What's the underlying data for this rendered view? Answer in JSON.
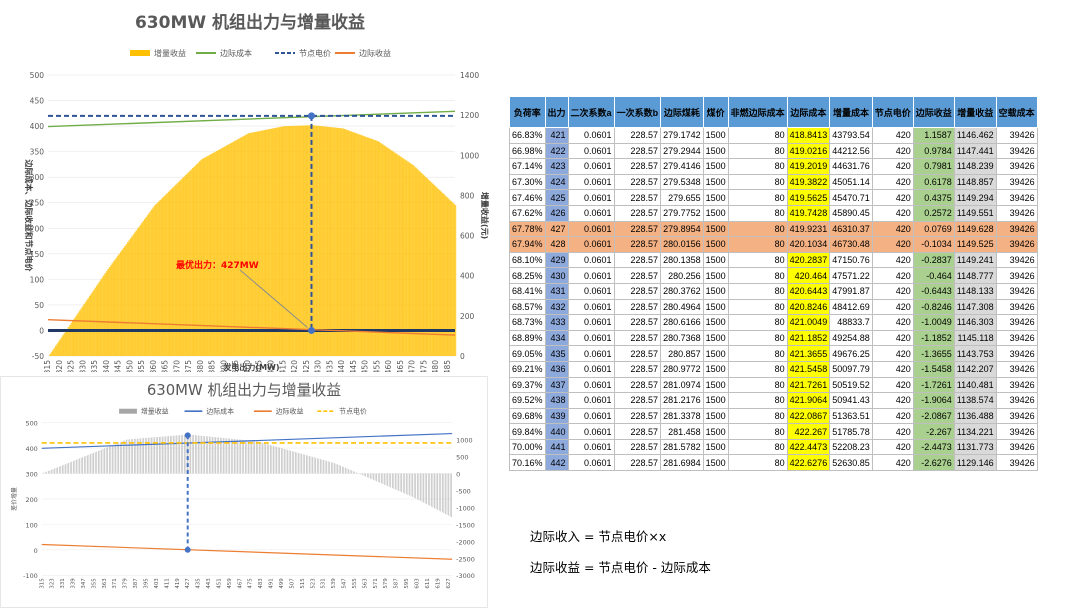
{
  "chart_data": [
    {
      "type": "line",
      "title": "630MW 机组出力与增量收益",
      "legend": [
        "增量收益",
        "边际成本",
        "节点电价",
        "边际收益"
      ],
      "xlabel": "发电出力(MW)",
      "ylabel_left": "边际成本、边际收益和节点电价",
      "ylabel_right": "增量收益(元)",
      "ylim_left": [
        -50,
        500
      ],
      "yticks_left": [
        "500",
        "450",
        "400",
        "350",
        "300",
        "250",
        "200",
        "150",
        "100",
        "50",
        "0",
        "-50"
      ],
      "ylim_right": [
        0,
        1400
      ],
      "yticks_right": [
        "1400",
        "1200",
        "1000",
        "800",
        "600",
        "400",
        "200",
        "0"
      ],
      "x_ticks": [
        "315",
        "320",
        "325",
        "330",
        "335",
        "340",
        "345",
        "350",
        "355",
        "360",
        "365",
        "370",
        "375",
        "380",
        "385",
        "390",
        "395",
        "400",
        "405",
        "410",
        "415",
        "420",
        "425",
        "430",
        "435",
        "440",
        "445",
        "450",
        "455",
        "460",
        "465",
        "470",
        "475",
        "480",
        "485"
      ],
      "x_range": [
        315,
        488
      ],
      "series": [
        {
          "name": "增量收益",
          "x": [
            315,
            340,
            360,
            380,
            400,
            415,
            427,
            440,
            455,
            470,
            488
          ],
          "values": [
            0,
            430,
            750,
            980,
            1110,
            1145,
            1150,
            1134,
            1070,
            950,
            750
          ]
        },
        {
          "name": "边际成本",
          "x": [
            315,
            488
          ],
          "values": [
            399,
            429
          ]
        },
        {
          "name": "节点电价",
          "x": [
            315,
            488
          ],
          "values": [
            420,
            420
          ]
        },
        {
          "name": "边际收益",
          "x": [
            315,
            488
          ],
          "values": [
            21,
            -9
          ]
        }
      ],
      "marker_x": 427,
      "annotation": "最优出力：427MW"
    },
    {
      "type": "line",
      "title": "630MW 机组出力与增量收益",
      "legend": [
        "增量收益",
        "边际成本",
        "边际收益",
        "节点电价"
      ],
      "ylabel_left": "差价增量",
      "ylim_left": [
        -100,
        500
      ],
      "yticks_left": [
        "500",
        "400",
        "300",
        "200",
        "100",
        "0",
        "-100"
      ],
      "ylim_right": [
        -3000,
        1500
      ],
      "yticks_right": [
        "1000",
        "500",
        "0",
        "-500",
        "-1000",
        "-1500",
        "-2000",
        "-2500",
        "-3000"
      ],
      "x_ticks": [
        "315",
        "323",
        "331",
        "339",
        "347",
        "355",
        "363",
        "371",
        "379",
        "387",
        "395",
        "403",
        "411",
        "419",
        "427",
        "435",
        "443",
        "451",
        "459",
        "467",
        "475",
        "483",
        "491",
        "499",
        "507",
        "515",
        "523",
        "531",
        "539",
        "547",
        "555",
        "563",
        "571",
        "579",
        "587",
        "595",
        "603",
        "611",
        "619",
        "627"
      ],
      "x_range": [
        315,
        630
      ],
      "series": [
        {
          "name": "增量收益",
          "x": [
            315,
            380,
            427,
            480,
            540,
            600,
            630
          ],
          "values": [
            0,
            1000,
            1150,
            950,
            300,
            -700,
            -1300
          ]
        },
        {
          "name": "边际成本",
          "x": [
            315,
            630
          ],
          "values": [
            399,
            457
          ]
        },
        {
          "name": "边际收益",
          "x": [
            315,
            630
          ],
          "values": [
            21,
            -37
          ]
        },
        {
          "name": "节点电价",
          "x": [
            315,
            630
          ],
          "values": [
            420,
            420
          ]
        }
      ],
      "marker_x": 427
    }
  ],
  "table": {
    "headers": [
      "负荷率",
      "出力",
      "二次系数a",
      "一次系数b",
      "边际煤耗",
      "煤价",
      "非燃边际成本",
      "边际成本",
      "增量成本",
      "节点电价",
      "边际收益",
      "增量收益",
      "空载成本"
    ],
    "highlight_rows": [
      6,
      7
    ],
    "rows": [
      [
        "66.83%",
        "421",
        "0.0601",
        "228.57",
        "279.1742",
        "1500",
        "80",
        "418.8413",
        "43793.54",
        "420",
        "1.1587",
        "1146.462",
        "39426"
      ],
      [
        "66.98%",
        "422",
        "0.0601",
        "228.57",
        "279.2944",
        "1500",
        "80",
        "419.0216",
        "44212.56",
        "420",
        "0.9784",
        "1147.441",
        "39426"
      ],
      [
        "67.14%",
        "423",
        "0.0601",
        "228.57",
        "279.4146",
        "1500",
        "80",
        "419.2019",
        "44631.76",
        "420",
        "0.7981",
        "1148.239",
        "39426"
      ],
      [
        "67.30%",
        "424",
        "0.0601",
        "228.57",
        "279.5348",
        "1500",
        "80",
        "419.3822",
        "45051.14",
        "420",
        "0.6178",
        "1148.857",
        "39426"
      ],
      [
        "67.46%",
        "425",
        "0.0601",
        "228.57",
        "279.655",
        "1500",
        "80",
        "419.5625",
        "45470.71",
        "420",
        "0.4375",
        "1149.294",
        "39426"
      ],
      [
        "67.62%",
        "426",
        "0.0601",
        "228.57",
        "279.7752",
        "1500",
        "80",
        "419.7428",
        "45890.45",
        "420",
        "0.2572",
        "1149.551",
        "39426"
      ],
      [
        "67.78%",
        "427",
        "0.0601",
        "228.57",
        "279.8954",
        "1500",
        "80",
        "419.9231",
        "46310.37",
        "420",
        "0.0769",
        "1149.628",
        "39426"
      ],
      [
        "67.94%",
        "428",
        "0.0601",
        "228.57",
        "280.0156",
        "1500",
        "80",
        "420.1034",
        "46730.48",
        "420",
        "-0.1034",
        "1149.525",
        "39426"
      ],
      [
        "68.10%",
        "429",
        "0.0601",
        "228.57",
        "280.1358",
        "1500",
        "80",
        "420.2837",
        "47150.76",
        "420",
        "-0.2837",
        "1149.241",
        "39426"
      ],
      [
        "68.25%",
        "430",
        "0.0601",
        "228.57",
        "280.256",
        "1500",
        "80",
        "420.464",
        "47571.22",
        "420",
        "-0.464",
        "1148.777",
        "39426"
      ],
      [
        "68.41%",
        "431",
        "0.0601",
        "228.57",
        "280.3762",
        "1500",
        "80",
        "420.6443",
        "47991.87",
        "420",
        "-0.6443",
        "1148.133",
        "39426"
      ],
      [
        "68.57%",
        "432",
        "0.0601",
        "228.57",
        "280.4964",
        "1500",
        "80",
        "420.8246",
        "48412.69",
        "420",
        "-0.8246",
        "1147.308",
        "39426"
      ],
      [
        "68.73%",
        "433",
        "0.0601",
        "228.57",
        "280.6166",
        "1500",
        "80",
        "421.0049",
        "48833.7",
        "420",
        "-1.0049",
        "1146.303",
        "39426"
      ],
      [
        "68.89%",
        "434",
        "0.0601",
        "228.57",
        "280.7368",
        "1500",
        "80",
        "421.1852",
        "49254.88",
        "420",
        "-1.1852",
        "1145.118",
        "39426"
      ],
      [
        "69.05%",
        "435",
        "0.0601",
        "228.57",
        "280.857",
        "1500",
        "80",
        "421.3655",
        "49676.25",
        "420",
        "-1.3655",
        "1143.753",
        "39426"
      ],
      [
        "69.21%",
        "436",
        "0.0601",
        "228.57",
        "280.9772",
        "1500",
        "80",
        "421.5458",
        "50097.79",
        "420",
        "-1.5458",
        "1142.207",
        "39426"
      ],
      [
        "69.37%",
        "437",
        "0.0601",
        "228.57",
        "281.0974",
        "1500",
        "80",
        "421.7261",
        "50519.52",
        "420",
        "-1.7261",
        "1140.481",
        "39426"
      ],
      [
        "69.52%",
        "438",
        "0.0601",
        "228.57",
        "281.2176",
        "1500",
        "80",
        "421.9064",
        "50941.43",
        "420",
        "-1.9064",
        "1138.574",
        "39426"
      ],
      [
        "69.68%",
        "439",
        "0.0601",
        "228.57",
        "281.3378",
        "1500",
        "80",
        "422.0867",
        "51363.51",
        "420",
        "-2.0867",
        "1136.488",
        "39426"
      ],
      [
        "69.84%",
        "440",
        "0.0601",
        "228.57",
        "281.458",
        "1500",
        "80",
        "422.267",
        "51785.78",
        "420",
        "-2.267",
        "1134.221",
        "39426"
      ],
      [
        "70.00%",
        "441",
        "0.0601",
        "228.57",
        "281.5782",
        "1500",
        "80",
        "422.4473",
        "52208.23",
        "420",
        "-2.4473",
        "1131.773",
        "39426"
      ],
      [
        "70.16%",
        "442",
        "0.0601",
        "228.57",
        "281.6984",
        "1500",
        "80",
        "422.6276",
        "52630.85",
        "420",
        "-2.6276",
        "1129.146",
        "39426"
      ]
    ]
  },
  "formulas": [
    "边际收入 = 节点电价×x",
    "边际收益 = 节点电价 - 边际成本"
  ],
  "colors": {
    "incremental_bar_1": "#ffc000",
    "incremental_bar_2": "#a6a6a6",
    "marginal_cost_1": "#70ad47",
    "marginal_cost_2": "#4472c4",
    "node_price_1": "#2f5597",
    "node_price_2": "#ffc000",
    "marginal_revenue": "#ed7d31",
    "table_header": "#5b9bd5",
    "table_output_col": "#8ea9db",
    "table_cost_col": "#ffff00",
    "table_revenue_col": "#a9d08e",
    "table_highlight_row": "#f4b183"
  }
}
